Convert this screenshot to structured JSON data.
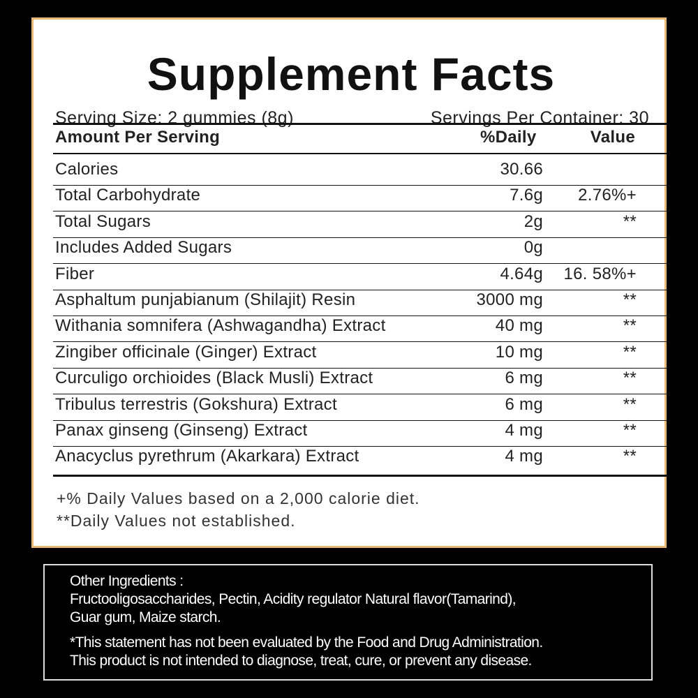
{
  "header": {
    "title": "Supplement Facts",
    "serving_size": "Serving Size: 2 gummies (8g)",
    "servings_per_container": "Servings Per Container: 30"
  },
  "table": {
    "columns": [
      "Amount Per Serving",
      "%Daily",
      "Value"
    ],
    "rows": [
      [
        "Calories",
        "30.66"
      ],
      [
        "Total Carbohydrate",
        "7.6g",
        "2.76%+"
      ],
      [
        "Total Sugars",
        "2g",
        "**"
      ],
      [
        "Includes Added Sugars",
        "0g"
      ],
      [
        "Fiber",
        "4.64g",
        "16. 58%+"
      ],
      [
        "Asphaltum punjabianum (Shilajit) Resin",
        "3000 mg",
        "**"
      ],
      [
        "Withania somnifera (Ashwagandha) Extract",
        "40 mg",
        "**"
      ],
      [
        "Zingiber officinale (Ginger) Extract",
        "10 mg",
        "**"
      ],
      [
        "Curculigo orchioides (Black Musli) Extract",
        "6 mg",
        "**"
      ],
      [
        "Tribulus terrestris (Gokshura) Extract",
        "6 mg",
        "**"
      ],
      [
        "Panax ginseng (Ginseng) Extract",
        "4 mg",
        "**"
      ],
      [
        "Anacyclus pyrethrum (Akarkara) Extract",
        "4 mg",
        "**"
      ]
    ]
  },
  "footnotes": [
    "+% Daily Values based on a 2,000 calorie diet.",
    "**Daily Values not established."
  ],
  "other_ingredients": {
    "label": "Other Ingredients :",
    "lines": [
      "Fructooligosaccharides, Pectin, Acidity regulator Natural flavor(Tamarind),",
      "Guar gum, Maize starch."
    ]
  },
  "disclaimer": [
    "*This statement has not been evaluated by the Food and Drug Administration.",
    "This product is not intended to diagnose, treat, cure, or prevent any disease."
  ]
}
